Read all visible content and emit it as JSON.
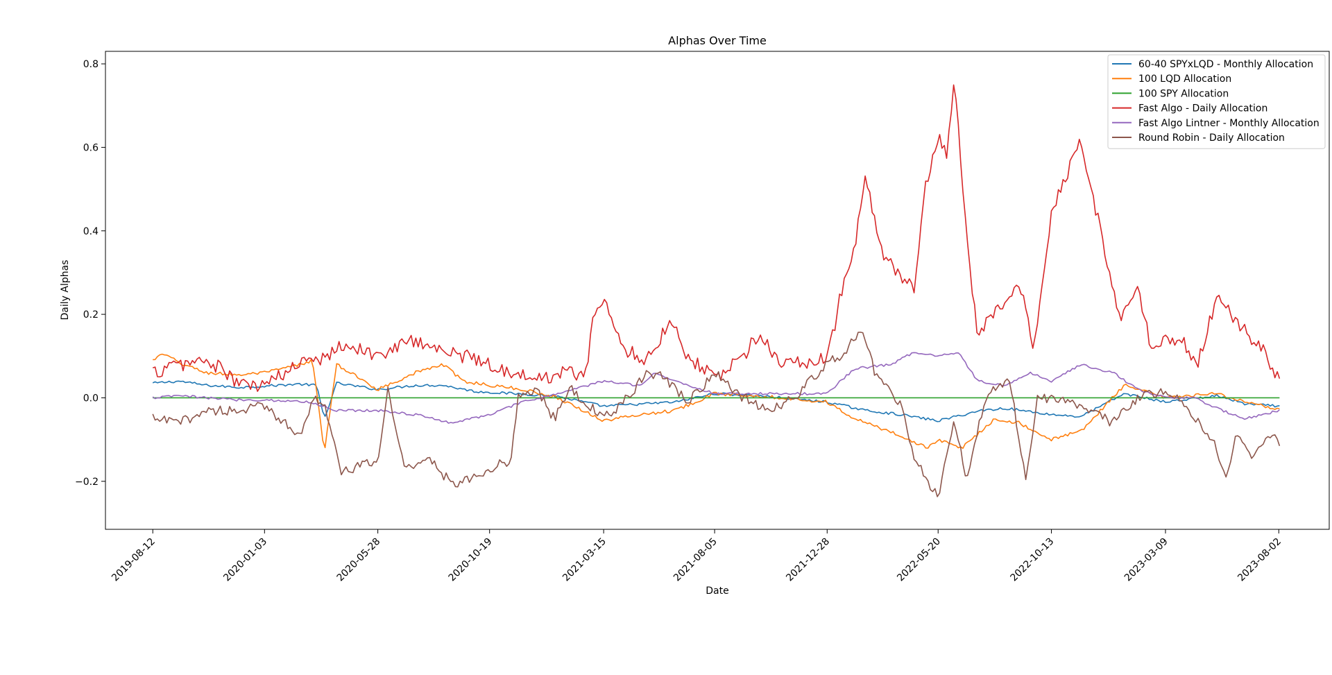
{
  "chart_data": {
    "type": "line",
    "title": "Alphas Over Time",
    "xlabel": "Date",
    "ylabel": "Daily Alphas",
    "x_start": "2019-08-12",
    "x_end": "2023-08-04",
    "xlim": [
      "2019-06-12",
      "2023-10-06"
    ],
    "ylim": [
      -0.315,
      0.83
    ],
    "x_ticks": [
      "2019-08-12",
      "2020-01-03",
      "2020-05-28",
      "2020-10-19",
      "2021-03-15",
      "2021-08-05",
      "2021-12-28",
      "2022-05-20",
      "2022-10-13",
      "2023-03-09",
      "2023-08-02"
    ],
    "y_ticks": [
      -0.2,
      0.0,
      0.2,
      0.4,
      0.6,
      0.8
    ],
    "y_tick_labels": [
      "−0.2",
      "0.0",
      "0.2",
      "0.4",
      "0.6",
      "0.8"
    ],
    "grid": false,
    "legend_position": "upper right",
    "series": [
      {
        "name": "60-40 SPYxLQD - Monthly Allocation",
        "color": "#1f77b4",
        "points": [
          [
            "2019-08-12",
            0.035
          ],
          [
            "2019-09-15",
            0.04
          ],
          [
            "2019-10-20",
            0.03
          ],
          [
            "2019-12-01",
            0.025
          ],
          [
            "2020-01-03",
            0.028
          ],
          [
            "2020-02-15",
            0.033
          ],
          [
            "2020-03-10",
            0.03
          ],
          [
            "2020-03-20",
            -0.05
          ],
          [
            "2020-04-05",
            0.035
          ],
          [
            "2020-05-28",
            0.02
          ],
          [
            "2020-07-15",
            0.03
          ],
          [
            "2020-08-20",
            0.03
          ],
          [
            "2020-10-01",
            0.015
          ],
          [
            "2020-11-20",
            0.01
          ],
          [
            "2021-01-10",
            0.005
          ],
          [
            "2021-03-15",
            -0.02
          ],
          [
            "2021-05-01",
            -0.015
          ],
          [
            "2021-06-15",
            -0.01
          ],
          [
            "2021-08-05",
            0.01
          ],
          [
            "2021-10-01",
            0.005
          ],
          [
            "2021-12-28",
            -0.01
          ],
          [
            "2022-02-15",
            -0.03
          ],
          [
            "2022-04-01",
            -0.04
          ],
          [
            "2022-05-20",
            -0.055
          ],
          [
            "2022-07-15",
            -0.03
          ],
          [
            "2022-08-15",
            -0.025
          ],
          [
            "2022-10-13",
            -0.04
          ],
          [
            "2022-11-20",
            -0.045
          ],
          [
            "2023-01-15",
            0.01
          ],
          [
            "2023-03-09",
            -0.01
          ],
          [
            "2023-05-15",
            0.005
          ],
          [
            "2023-06-20",
            -0.015
          ],
          [
            "2023-08-04",
            -0.02
          ]
        ]
      },
      {
        "name": "100 LQD Allocation",
        "color": "#ff7f0e",
        "points": [
          [
            "2019-08-12",
            0.09
          ],
          [
            "2019-08-25",
            0.105
          ],
          [
            "2019-09-20",
            0.08
          ],
          [
            "2019-10-20",
            0.06
          ],
          [
            "2019-12-01",
            0.055
          ],
          [
            "2020-01-03",
            0.06
          ],
          [
            "2020-02-20",
            0.08
          ],
          [
            "2020-03-05",
            0.09
          ],
          [
            "2020-03-20",
            -0.13
          ],
          [
            "2020-04-05",
            0.08
          ],
          [
            "2020-05-28",
            0.02
          ],
          [
            "2020-07-15",
            0.06
          ],
          [
            "2020-08-20",
            0.08
          ],
          [
            "2020-09-15",
            0.04
          ],
          [
            "2020-10-19",
            0.03
          ],
          [
            "2020-12-01",
            0.02
          ],
          [
            "2021-01-15",
            0.0
          ],
          [
            "2021-03-15",
            -0.055
          ],
          [
            "2021-05-01",
            -0.04
          ],
          [
            "2021-06-15",
            -0.03
          ],
          [
            "2021-08-05",
            0.01
          ],
          [
            "2021-10-01",
            0.005
          ],
          [
            "2021-12-28",
            -0.01
          ],
          [
            "2022-02-01",
            -0.05
          ],
          [
            "2022-04-01",
            -0.09
          ],
          [
            "2022-05-05",
            -0.12
          ],
          [
            "2022-05-20",
            -0.1
          ],
          [
            "2022-06-20",
            -0.12
          ],
          [
            "2022-08-01",
            -0.05
          ],
          [
            "2022-09-01",
            -0.06
          ],
          [
            "2022-10-13",
            -0.1
          ],
          [
            "2022-11-20",
            -0.08
          ],
          [
            "2023-01-15",
            0.03
          ],
          [
            "2023-03-09",
            0.0
          ],
          [
            "2023-05-15",
            0.01
          ],
          [
            "2023-06-20",
            -0.01
          ],
          [
            "2023-08-04",
            -0.03
          ]
        ]
      },
      {
        "name": "100 SPY Allocation",
        "color": "#2ca02c",
        "points": [
          [
            "2019-08-12",
            0.0
          ],
          [
            "2023-08-04",
            0.0
          ]
        ]
      },
      {
        "name": "Fast Algo - Daily Allocation",
        "color": "#d62728",
        "points": [
          [
            "2019-08-12",
            0.06
          ],
          [
            "2019-09-15",
            0.08
          ],
          [
            "2019-10-20",
            0.09
          ],
          [
            "2019-11-15",
            0.06
          ],
          [
            "2019-12-01",
            0.03
          ],
          [
            "2020-01-03",
            0.03
          ],
          [
            "2020-02-10",
            0.07
          ],
          [
            "2020-03-01",
            0.11
          ],
          [
            "2020-03-10",
            0.09
          ],
          [
            "2020-04-15",
            0.13
          ],
          [
            "2020-05-28",
            0.1
          ],
          [
            "2020-07-15",
            0.14
          ],
          [
            "2020-08-20",
            0.11
          ],
          [
            "2020-09-20",
            0.1
          ],
          [
            "2020-10-19",
            0.08
          ],
          [
            "2020-11-20",
            0.06
          ],
          [
            "2020-12-15",
            0.04
          ],
          [
            "2021-01-15",
            0.06
          ],
          [
            "2021-02-20",
            0.06
          ],
          [
            "2021-03-01",
            0.19
          ],
          [
            "2021-03-15",
            0.23
          ],
          [
            "2021-04-10",
            0.12
          ],
          [
            "2021-05-10",
            0.09
          ],
          [
            "2021-06-10",
            0.19
          ],
          [
            "2021-07-01",
            0.1
          ],
          [
            "2021-08-05",
            0.05
          ],
          [
            "2021-09-01",
            0.08
          ],
          [
            "2021-10-01",
            0.15
          ],
          [
            "2021-11-01",
            0.08
          ],
          [
            "2021-12-28",
            0.09
          ],
          [
            "2022-01-15",
            0.25
          ],
          [
            "2022-02-01",
            0.35
          ],
          [
            "2022-02-15",
            0.53
          ],
          [
            "2022-03-10",
            0.33
          ],
          [
            "2022-04-01",
            0.3
          ],
          [
            "2022-04-20",
            0.25
          ],
          [
            "2022-05-01",
            0.48
          ],
          [
            "2022-05-20",
            0.62
          ],
          [
            "2022-06-01",
            0.58
          ],
          [
            "2022-06-10",
            0.77
          ],
          [
            "2022-06-25",
            0.4
          ],
          [
            "2022-07-10",
            0.15
          ],
          [
            "2022-08-01",
            0.2
          ],
          [
            "2022-09-01",
            0.28
          ],
          [
            "2022-09-20",
            0.12
          ],
          [
            "2022-10-13",
            0.45
          ],
          [
            "2022-11-20",
            0.62
          ],
          [
            "2022-12-15",
            0.4
          ],
          [
            "2023-01-10",
            0.18
          ],
          [
            "2023-02-01",
            0.28
          ],
          [
            "2023-02-20",
            0.1
          ],
          [
            "2023-03-09",
            0.15
          ],
          [
            "2023-04-01",
            0.13
          ],
          [
            "2023-04-20",
            0.08
          ],
          [
            "2023-05-15",
            0.25
          ],
          [
            "2023-06-15",
            0.17
          ],
          [
            "2023-07-10",
            0.12
          ],
          [
            "2023-08-04",
            0.04
          ]
        ]
      },
      {
        "name": "Fast Algo Lintner - Monthly Allocation",
        "color": "#9467bd",
        "points": [
          [
            "2019-08-12",
            0.0
          ],
          [
            "2019-09-15",
            0.005
          ],
          [
            "2019-10-20",
            0.0
          ],
          [
            "2019-12-01",
            -0.005
          ],
          [
            "2020-01-03",
            -0.005
          ],
          [
            "2020-03-01",
            -0.01
          ],
          [
            "2020-04-05",
            -0.03
          ],
          [
            "2020-05-28",
            -0.03
          ],
          [
            "2020-07-15",
            -0.04
          ],
          [
            "2020-09-01",
            -0.06
          ],
          [
            "2020-10-19",
            -0.04
          ],
          [
            "2020-12-01",
            -0.01
          ],
          [
            "2021-01-15",
            0.01
          ],
          [
            "2021-03-15",
            0.04
          ],
          [
            "2021-05-01",
            0.03
          ],
          [
            "2021-05-20",
            0.06
          ],
          [
            "2021-06-15",
            0.04
          ],
          [
            "2021-08-05",
            0.01
          ],
          [
            "2021-10-01",
            0.01
          ],
          [
            "2021-12-28",
            0.01
          ],
          [
            "2022-02-01",
            0.07
          ],
          [
            "2022-03-20",
            0.08
          ],
          [
            "2022-04-20",
            0.11
          ],
          [
            "2022-05-20",
            0.1
          ],
          [
            "2022-06-15",
            0.11
          ],
          [
            "2022-07-10",
            0.04
          ],
          [
            "2022-08-15",
            0.03
          ],
          [
            "2022-09-15",
            0.06
          ],
          [
            "2022-10-13",
            0.04
          ],
          [
            "2022-11-20",
            0.08
          ],
          [
            "2023-01-01",
            0.06
          ],
          [
            "2023-02-01",
            0.02
          ],
          [
            "2023-03-09",
            0.0
          ],
          [
            "2023-04-15",
            0.0
          ],
          [
            "2023-05-20",
            -0.03
          ],
          [
            "2023-06-20",
            -0.05
          ],
          [
            "2023-08-04",
            -0.03
          ]
        ]
      },
      {
        "name": "Round Robin - Daily Allocation",
        "color": "#8c564b",
        "points": [
          [
            "2019-08-12",
            -0.05
          ],
          [
            "2019-09-15",
            -0.06
          ],
          [
            "2019-10-20",
            -0.03
          ],
          [
            "2019-12-01",
            -0.03
          ],
          [
            "2020-01-03",
            -0.02
          ],
          [
            "2020-02-20",
            -0.09
          ],
          [
            "2020-03-05",
            0.0
          ],
          [
            "2020-03-20",
            -0.01
          ],
          [
            "2020-04-10",
            -0.18
          ],
          [
            "2020-05-28",
            -0.15
          ],
          [
            "2020-06-10",
            0.02
          ],
          [
            "2020-07-01",
            -0.17
          ],
          [
            "2020-08-01",
            -0.14
          ],
          [
            "2020-09-01",
            -0.21
          ],
          [
            "2020-10-19",
            -0.17
          ],
          [
            "2020-11-15",
            -0.15
          ],
          [
            "2020-11-25",
            0.0
          ],
          [
            "2020-12-20",
            0.02
          ],
          [
            "2021-01-10",
            -0.05
          ],
          [
            "2021-02-01",
            0.02
          ],
          [
            "2021-03-15",
            -0.05
          ],
          [
            "2021-04-10",
            -0.01
          ],
          [
            "2021-05-10",
            0.06
          ],
          [
            "2021-06-01",
            0.05
          ],
          [
            "2021-07-01",
            -0.01
          ],
          [
            "2021-08-05",
            0.06
          ],
          [
            "2021-09-01",
            0.01
          ],
          [
            "2021-10-15",
            -0.03
          ],
          [
            "2021-11-15",
            0.0
          ],
          [
            "2021-12-28",
            0.08
          ],
          [
            "2022-01-20",
            0.11
          ],
          [
            "2022-02-10",
            0.17
          ],
          [
            "2022-03-01",
            0.05
          ],
          [
            "2022-04-01",
            -0.01
          ],
          [
            "2022-04-20",
            -0.15
          ],
          [
            "2022-05-20",
            -0.24
          ],
          [
            "2022-06-10",
            -0.05
          ],
          [
            "2022-06-25",
            -0.2
          ],
          [
            "2022-07-20",
            0.0
          ],
          [
            "2022-08-20",
            0.05
          ],
          [
            "2022-09-10",
            -0.2
          ],
          [
            "2022-09-25",
            0.0
          ],
          [
            "2022-10-13",
            0.0
          ],
          [
            "2022-11-20",
            -0.02
          ],
          [
            "2023-01-01",
            -0.06
          ],
          [
            "2023-02-01",
            0.0
          ],
          [
            "2023-03-09",
            0.02
          ],
          [
            "2023-04-10",
            -0.03
          ],
          [
            "2023-05-10",
            -0.1
          ],
          [
            "2023-05-25",
            -0.2
          ],
          [
            "2023-06-10",
            -0.08
          ],
          [
            "2023-07-01",
            -0.15
          ],
          [
            "2023-07-20",
            -0.08
          ],
          [
            "2023-08-04",
            -0.11
          ]
        ]
      }
    ]
  }
}
